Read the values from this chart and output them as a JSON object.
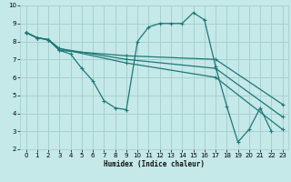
{
  "xlabel": "Humidex (Indice chaleur)",
  "bg_color": "#c5e8e8",
  "grid_color": "#a8d0d0",
  "line_color": "#1e7878",
  "xlim": [
    -0.5,
    23.5
  ],
  "ylim": [
    2,
    10
  ],
  "xticks": [
    0,
    1,
    2,
    3,
    4,
    5,
    6,
    7,
    8,
    9,
    10,
    11,
    12,
    13,
    14,
    15,
    16,
    17,
    18,
    19,
    20,
    21,
    22,
    23
  ],
  "yticks": [
    2,
    3,
    4,
    5,
    6,
    7,
    8,
    9,
    10
  ],
  "series1_x": [
    0,
    1,
    2,
    3,
    4,
    5,
    6,
    7,
    8,
    9,
    10,
    11,
    12,
    13,
    14,
    15,
    16,
    17,
    18,
    19,
    20,
    21,
    22
  ],
  "series1_y": [
    8.5,
    8.2,
    8.1,
    7.5,
    7.3,
    6.5,
    5.8,
    4.7,
    4.3,
    4.2,
    8.0,
    8.8,
    9.0,
    9.0,
    9.0,
    9.6,
    9.2,
    6.6,
    4.4,
    2.4,
    3.1,
    4.3,
    3.0
  ],
  "diag1_x": [
    0,
    1,
    2,
    3,
    9,
    17,
    23
  ],
  "diag1_y": [
    8.5,
    8.2,
    8.1,
    7.5,
    7.2,
    7.0,
    4.5
  ],
  "diag2_x": [
    0,
    1,
    2,
    3,
    9,
    17,
    23
  ],
  "diag2_y": [
    8.5,
    8.2,
    8.1,
    7.6,
    7.0,
    6.5,
    3.8
  ],
  "diag3_x": [
    0,
    1,
    2,
    3,
    9,
    17,
    23
  ],
  "diag3_y": [
    8.5,
    8.2,
    8.1,
    7.6,
    6.8,
    6.0,
    3.1
  ]
}
